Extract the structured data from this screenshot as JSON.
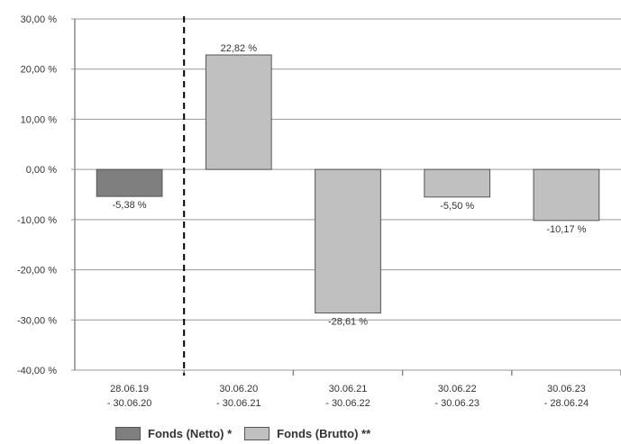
{
  "chart_data": {
    "type": "bar",
    "categories": [
      [
        "28.06.19",
        "- 30.06.20"
      ],
      [
        "30.06.20",
        "- 30.06.21"
      ],
      [
        "30.06.21",
        "- 30.06.22"
      ],
      [
        "30.06.22",
        "- 30.06.23"
      ],
      [
        "30.06.23",
        "- 28.06.24"
      ]
    ],
    "values": [
      -5.38,
      22.82,
      -28.61,
      -5.5,
      -10.17
    ],
    "value_labels": [
      "-5,38 %",
      "22,82 %",
      "-28,61 %",
      "-5,50 %",
      "-10,17 %"
    ],
    "series_of_bar": [
      0,
      1,
      1,
      1,
      1
    ],
    "series": [
      {
        "name": "Fonds (Netto) *",
        "color": "#7f7f7f"
      },
      {
        "name": "Fonds (Brutto) **",
        "color": "#c0c0c0"
      }
    ],
    "ylim": [
      -40,
      30
    ],
    "yticks": [
      30,
      20,
      10,
      0,
      -10,
      -20,
      -30,
      -40
    ],
    "ytick_labels": [
      "30,00 %",
      "20,00 %",
      "10,00 %",
      "0,00 %",
      "-10,00 %",
      "-20,00 %",
      "-30,00 %",
      "-40,00 %"
    ],
    "grid": true,
    "divider_after_category": 0,
    "legend_position": "bottom",
    "colors": {
      "grid": "#999999",
      "axis": "#888888",
      "bar_edge": "#555555",
      "divider": "#000000"
    }
  }
}
